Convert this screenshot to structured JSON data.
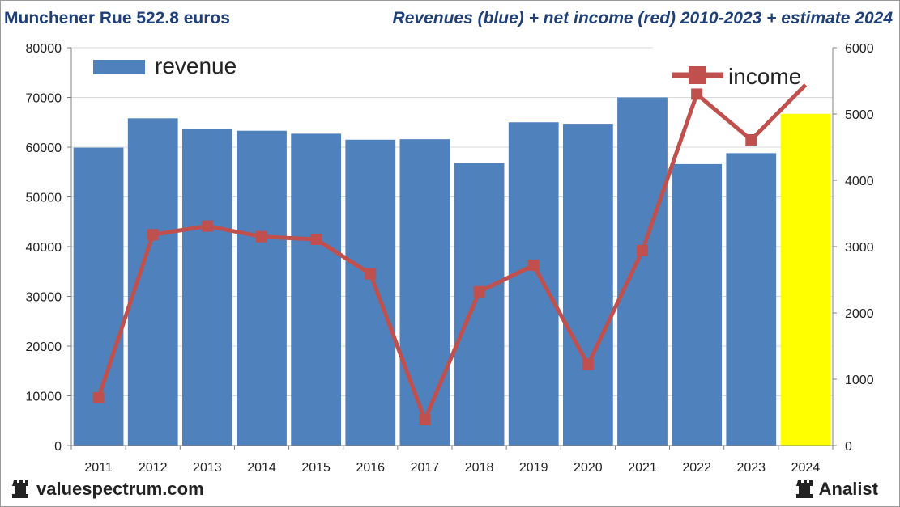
{
  "header": {
    "title": "Munchener Rue 522.8 euros",
    "subtitle": "Revenues (blue) + net income (red) 2010-2023 + estimate 2024"
  },
  "footer": {
    "site": "valuespectrum.com",
    "brand": "Analist"
  },
  "colors": {
    "revenue": "#4f81bd",
    "estimate": "#ffff00",
    "income": "#c0504d",
    "grid": "#d9d9d9",
    "axis": "#808080"
  },
  "chart_data": {
    "type": "bar",
    "title": "Munchener Rue 522.8 euros",
    "subtitle": "Revenues (blue) + net income (red) 2010-2023 + estimate 2024",
    "categories": [
      "2011",
      "2012",
      "2013",
      "2014",
      "2015",
      "2016",
      "2017",
      "2018",
      "2019",
      "2020",
      "2021",
      "2022",
      "2023",
      "2024"
    ],
    "series": [
      {
        "name": "revenue",
        "type": "bar",
        "axis": "left",
        "values": [
          59900,
          65800,
          63600,
          63300,
          62700,
          61500,
          61600,
          56800,
          65000,
          64700,
          70000,
          56600,
          58800,
          66700
        ],
        "estimate_index": 13
      },
      {
        "name": "income",
        "type": "line",
        "axis": "right",
        "values": [
          720,
          3180,
          3310,
          3150,
          3110,
          2590,
          390,
          2320,
          2720,
          1220,
          2940,
          5300,
          4610,
          5440
        ]
      }
    ],
    "y_left": {
      "ticks": [
        "0",
        "10000",
        "20000",
        "30000",
        "40000",
        "50000",
        "60000",
        "70000",
        "80000"
      ],
      "ylim": [
        0,
        80000
      ]
    },
    "y_right": {
      "ticks": [
        "0",
        "1000",
        "2000",
        "3000",
        "4000",
        "5000",
        "6000"
      ],
      "ylim": [
        0,
        6000
      ]
    },
    "legend": [
      {
        "name": "revenue",
        "placement": "top-left"
      },
      {
        "name": "income",
        "placement": "top-right"
      }
    ],
    "grid": true
  }
}
